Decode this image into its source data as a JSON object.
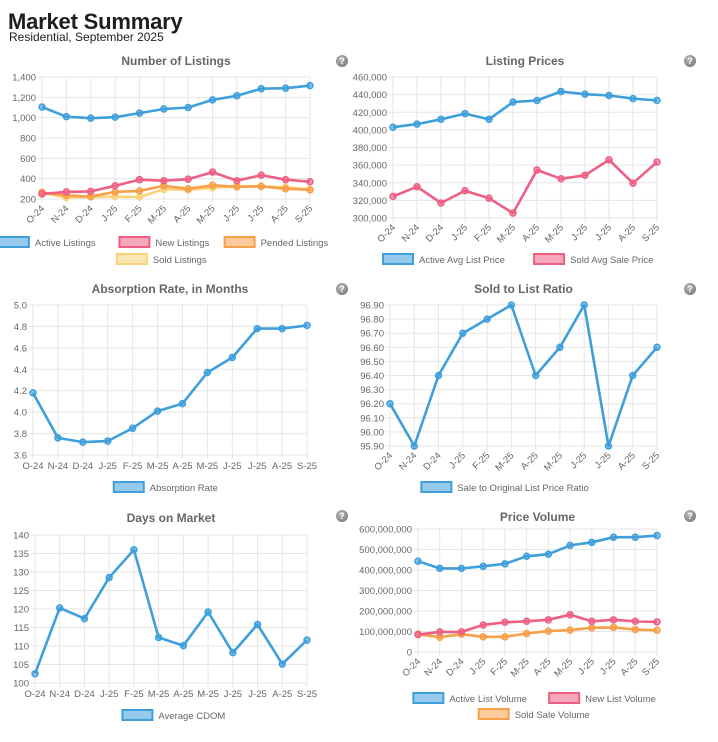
{
  "header": {
    "title": "Market Summary",
    "subtitle": "Residential, September 2025"
  },
  "help_icon_glyph": "?",
  "colors": {
    "blue": "#3e9fdb",
    "pink": "#ef5f84",
    "orange": "#f7a049",
    "yellow": "#fbd27a"
  },
  "chart_data": [
    {
      "id": "listings",
      "type": "line",
      "title": "Number of Listings",
      "categories": [
        "O-24",
        "N-24",
        "D-24",
        "J-25",
        "F-25",
        "M-25",
        "A-25",
        "M-25",
        "J-25",
        "J-25",
        "A-25",
        "S-25"
      ],
      "x_rotated": true,
      "ylim": [
        200,
        1400
      ],
      "yticks": [
        200,
        400,
        600,
        800,
        1000,
        1200,
        1400
      ],
      "ytick_labels": [
        "200",
        "400",
        "600",
        "800",
        "1,000",
        "1,200",
        "1,400"
      ],
      "grid": true,
      "legend_position": "bottom",
      "series": [
        {
          "name": "Active Listings",
          "color": "blue",
          "values": [
            1105,
            1010,
            995,
            1005,
            1045,
            1085,
            1100,
            1175,
            1215,
            1285,
            1290,
            1315
          ]
        },
        {
          "name": "New Listings",
          "color": "pink",
          "values": [
            250,
            270,
            275,
            330,
            390,
            380,
            395,
            465,
            380,
            435,
            390,
            370
          ]
        },
        {
          "name": "Pended Listings",
          "color": "orange",
          "values": [
            265,
            235,
            225,
            270,
            280,
            330,
            300,
            335,
            320,
            325,
            300,
            290
          ]
        },
        {
          "name": "Sold Listings",
          "color": "yellow",
          "values": [
            260,
            215,
            220,
            225,
            220,
            295,
            290,
            310,
            325,
            325,
            315,
            295
          ]
        }
      ]
    },
    {
      "id": "prices",
      "type": "line",
      "title": "Listing Prices",
      "categories": [
        "O-24",
        "N-24",
        "D-24",
        "J-25",
        "F-25",
        "M-25",
        "A-25",
        "M-25",
        "J-25",
        "J-25",
        "A-25",
        "S-25"
      ],
      "x_rotated": true,
      "ylim": [
        300000,
        460000
      ],
      "yticks": [
        300000,
        320000,
        340000,
        360000,
        380000,
        400000,
        420000,
        440000,
        460000
      ],
      "ytick_labels": [
        "300,000",
        "320,000",
        "340,000",
        "360,000",
        "380,000",
        "400,000",
        "420,000",
        "440,000",
        "460,000"
      ],
      "grid": true,
      "legend_position": "bottom",
      "series": [
        {
          "name": "Active Avg List Price",
          "color": "blue",
          "values": [
            403000,
            406500,
            412000,
            418500,
            412000,
            431500,
            433500,
            443500,
            440500,
            439000,
            435500,
            433500
          ]
        },
        {
          "name": "Sold Avg Sale Price",
          "color": "pink",
          "values": [
            324500,
            335500,
            317000,
            331000,
            322500,
            305500,
            354500,
            344500,
            348500,
            366000,
            339500,
            363500
          ]
        }
      ]
    },
    {
      "id": "absorption",
      "type": "line",
      "title": "Absorption Rate, in Months",
      "categories": [
        "O-24",
        "N-24",
        "D-24",
        "J-25",
        "F-25",
        "M-25",
        "A-25",
        "M-25",
        "J-25",
        "J-25",
        "A-25",
        "S-25"
      ],
      "x_rotated": false,
      "ylim": [
        3.6,
        5.0
      ],
      "yticks": [
        3.6,
        3.8,
        4.0,
        4.2,
        4.4,
        4.6,
        4.8,
        5.0
      ],
      "ytick_labels": [
        "3.6",
        "3.8",
        "4.0",
        "4.2",
        "4.4",
        "4.6",
        "4.8",
        "5.0"
      ],
      "grid": true,
      "legend_position": "bottom",
      "series": [
        {
          "name": "Absorption Rate",
          "color": "blue",
          "values": [
            4.18,
            3.76,
            3.72,
            3.73,
            3.85,
            4.01,
            4.08,
            4.37,
            4.51,
            4.78,
            4.78,
            4.81
          ]
        }
      ]
    },
    {
      "id": "ratio",
      "type": "line",
      "title": "Sold to List Ratio",
      "categories": [
        "O-24",
        "N-24",
        "D-24",
        "J-25",
        "F-25",
        "M-25",
        "A-25",
        "M-25",
        "J-25",
        "J-25",
        "A-25",
        "S-25"
      ],
      "x_rotated": true,
      "ylim": [
        95.9,
        96.9
      ],
      "yticks": [
        95.9,
        96.0,
        96.1,
        96.2,
        96.3,
        96.4,
        96.5,
        96.6,
        96.7,
        96.8,
        96.9
      ],
      "ytick_labels": [
        "95.90",
        "96.00",
        "96.10",
        "96.20",
        "96.30",
        "96.40",
        "96.50",
        "96.60",
        "96.70",
        "96.80",
        "96.90"
      ],
      "grid": true,
      "legend_position": "bottom",
      "series": [
        {
          "name": "Sale to Original List Price Ratio",
          "color": "blue",
          "values": [
            96.2,
            95.9,
            96.4,
            96.7,
            96.8,
            96.9,
            96.4,
            96.6,
            96.9,
            95.9,
            96.4,
            96.6
          ]
        }
      ]
    },
    {
      "id": "dom",
      "type": "line",
      "title": "Days on Market",
      "categories": [
        "O-24",
        "N-24",
        "D-24",
        "J-25",
        "F-25",
        "M-25",
        "A-25",
        "M-25",
        "J-25",
        "J-25",
        "A-25",
        "S-25"
      ],
      "x_rotated": false,
      "ylim": [
        100,
        140
      ],
      "yticks": [
        100,
        105,
        110,
        115,
        120,
        125,
        130,
        135,
        140
      ],
      "ytick_labels": [
        "100",
        "105",
        "110",
        "115",
        "120",
        "125",
        "130",
        "135",
        "140"
      ],
      "grid": true,
      "legend_position": "bottom",
      "series": [
        {
          "name": "Average CDOM",
          "color": "blue",
          "values": [
            102.5,
            120.3,
            117.4,
            128.5,
            136,
            112.3,
            110.1,
            119.2,
            108.2,
            115.8,
            105.1,
            111.6
          ]
        }
      ]
    },
    {
      "id": "volume",
      "type": "line",
      "title": "Price Volume",
      "categories": [
        "O-24",
        "N-24",
        "D-24",
        "J-25",
        "F-25",
        "M-25",
        "A-25",
        "M-25",
        "J-25",
        "J-25",
        "A-25",
        "S-25"
      ],
      "x_rotated": true,
      "ylim": [
        0,
        600000000
      ],
      "yticks": [
        0,
        100000000,
        200000000,
        300000000,
        400000000,
        500000000,
        600000000
      ],
      "ytick_labels": [
        "0",
        "100,000,000",
        "200,000,000",
        "300,000,000",
        "400,000,000",
        "500,000,000",
        "600,000,000"
      ],
      "grid": true,
      "legend_position": "bottom",
      "series": [
        {
          "name": "Active List Volume",
          "color": "blue",
          "values": [
            443000000,
            408000000,
            408000000,
            418000000,
            430000000,
            467000000,
            477000000,
            520000000,
            535000000,
            560000000,
            560000000,
            568000000
          ]
        },
        {
          "name": "New List Volume",
          "color": "pink",
          "values": [
            85000000,
            98000000,
            98000000,
            132000000,
            145000000,
            150000000,
            157000000,
            182000000,
            150000000,
            157000000,
            150000000,
            147000000
          ]
        },
        {
          "name": "Sold Sale Volume",
          "color": "orange",
          "values": [
            87000000,
            72000000,
            87000000,
            74000000,
            74000000,
            90000000,
            102000000,
            107000000,
            118000000,
            120000000,
            110000000,
            106000000
          ]
        }
      ]
    }
  ]
}
